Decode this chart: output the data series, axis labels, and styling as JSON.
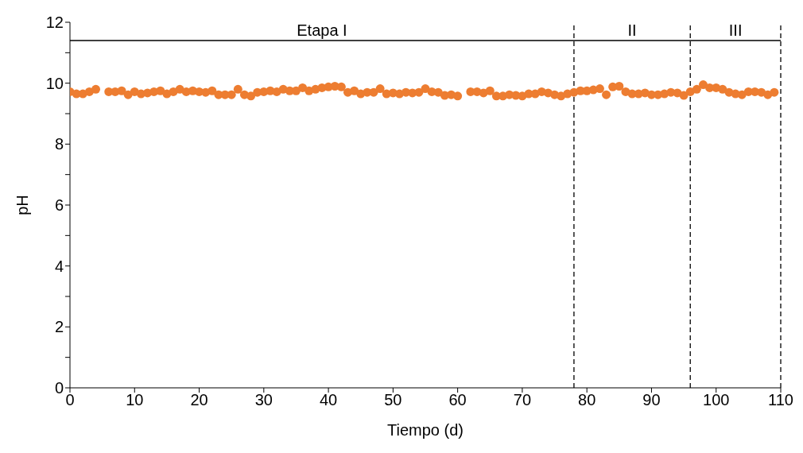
{
  "chart_data": {
    "type": "scatter",
    "xlabel": "Tiempo (d)",
    "ylabel": "pH",
    "xlim": [
      0,
      110
    ],
    "xticks": [
      0,
      10,
      20,
      30,
      40,
      50,
      60,
      70,
      80,
      90,
      100,
      110
    ],
    "ylim": [
      0,
      12
    ],
    "yticks": [
      0,
      {
        "value": 1,
        "label": null
      },
      2,
      {
        "value": 3,
        "label": null
      },
      4,
      {
        "value": 5,
        "label": null
      },
      6,
      {
        "value": 7,
        "label": null
      },
      8,
      {
        "value": 9,
        "label": null
      },
      10,
      {
        "value": 11,
        "label": null
      },
      12
    ],
    "grid": false,
    "legend": false,
    "marker": "circle",
    "series": [
      {
        "color": "#ed7d31",
        "x": [
          0,
          1,
          2,
          3,
          4,
          6,
          7,
          8,
          9,
          10,
          11,
          12,
          13,
          14,
          15,
          16,
          17,
          18,
          19,
          20,
          21,
          22,
          23,
          24,
          25,
          26,
          27,
          28,
          29,
          30,
          31,
          32,
          33,
          34,
          35,
          36,
          37,
          38,
          39,
          40,
          41,
          42,
          43,
          44,
          45,
          46,
          47,
          48,
          49,
          50,
          51,
          52,
          53,
          54,
          55,
          56,
          57,
          58,
          59,
          60,
          62,
          63,
          64,
          65,
          66,
          67,
          68,
          69,
          70,
          71,
          72,
          73,
          74,
          75,
          76,
          77,
          78,
          79,
          80,
          81,
          82,
          83,
          84,
          85,
          86,
          87,
          88,
          89,
          90,
          91,
          92,
          93,
          94,
          95,
          96,
          97,
          98,
          99,
          100,
          101,
          102,
          103,
          104,
          105,
          106,
          107,
          108,
          109
        ],
        "values": [
          9.72,
          9.65,
          9.65,
          9.72,
          9.8,
          9.72,
          9.72,
          9.75,
          9.62,
          9.72,
          9.65,
          9.68,
          9.72,
          9.75,
          9.65,
          9.72,
          9.8,
          9.72,
          9.75,
          9.72,
          9.7,
          9.75,
          9.62,
          9.62,
          9.62,
          9.8,
          9.62,
          9.58,
          9.7,
          9.72,
          9.75,
          9.72,
          9.8,
          9.75,
          9.75,
          9.85,
          9.75,
          9.8,
          9.85,
          9.88,
          9.9,
          9.88,
          9.7,
          9.75,
          9.65,
          9.7,
          9.7,
          9.82,
          9.65,
          9.68,
          9.65,
          9.7,
          9.68,
          9.7,
          9.82,
          9.72,
          9.7,
          9.6,
          9.62,
          9.58,
          9.72,
          9.72,
          9.68,
          9.75,
          9.58,
          9.58,
          9.62,
          9.6,
          9.58,
          9.65,
          9.65,
          9.72,
          9.68,
          9.62,
          9.58,
          9.65,
          9.7,
          9.75,
          9.75,
          9.78,
          9.82,
          9.62,
          9.88,
          9.9,
          9.72,
          9.65,
          9.65,
          9.68,
          9.62,
          9.62,
          9.65,
          9.7,
          9.68,
          9.6,
          9.72,
          9.8,
          9.95,
          9.85,
          9.85,
          9.8,
          9.7,
          9.65,
          9.62,
          9.72,
          9.72,
          9.7,
          9.62,
          9.7
        ]
      }
    ],
    "ref_lines": [
      {
        "axis": "x",
        "value": 78,
        "color": "#000000",
        "line_style": "dashed"
      },
      {
        "axis": "x",
        "value": 96,
        "color": "#000000",
        "line_style": "dashed"
      },
      {
        "axis": "x",
        "value": 110,
        "color": "#000000",
        "line_style": "dashed"
      },
      {
        "axis": "y",
        "value": 11.4,
        "color": "#000000",
        "line_style": "solid"
      }
    ],
    "annotations": [
      "Etapa I",
      "II",
      "III"
    ]
  }
}
